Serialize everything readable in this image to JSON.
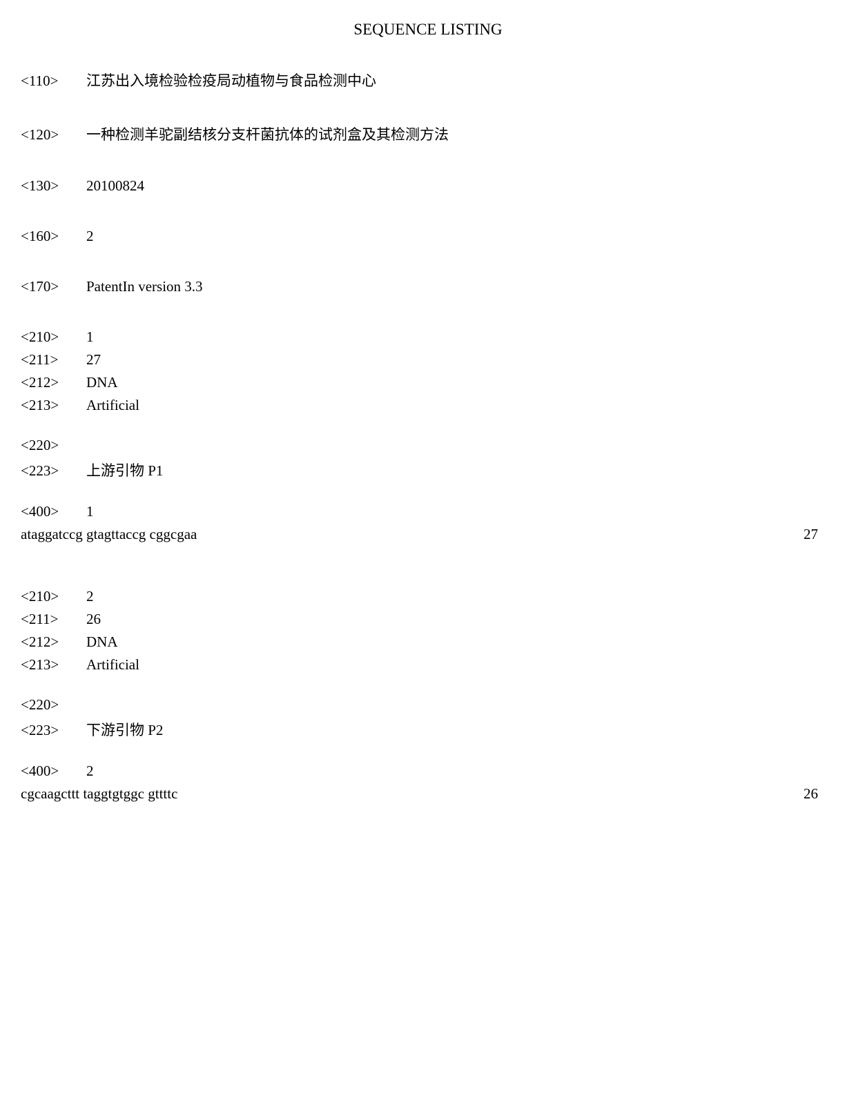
{
  "title": "SEQUENCE LISTING",
  "header": {
    "tag110": "<110>",
    "val110": "江苏出入境检验检疫局动植物与食品检测中心",
    "tag120": "<120>",
    "val120": "一种检测羊驼副结核分支杆菌抗体的试剂盒及其检测方法",
    "tag130": "<130>",
    "val130": "20100824",
    "tag160": "<160>",
    "val160": "2",
    "tag170": "<170>",
    "val170": "PatentIn version 3.3"
  },
  "seq1": {
    "tag210": "<210>",
    "val210": "1",
    "tag211": "<211>",
    "val211": "27",
    "tag212": "<212>",
    "val212": "DNA",
    "tag213": "<213>",
    "val213": "Artificial",
    "tag220": "<220>",
    "tag223": "<223>",
    "val223": "上游引物 P1",
    "tag400": "<400>",
    "val400": "1",
    "sequence": "ataggatccg gtagttaccg cggcgaa",
    "length": "27"
  },
  "seq2": {
    "tag210": "<210>",
    "val210": "2",
    "tag211": "<211>",
    "val211": "26",
    "tag212": "<212>",
    "val212": "DNA",
    "tag213": "<213>",
    "val213": "Artificial",
    "tag220": "<220>",
    "tag223": "<223>",
    "val223": "下游引物 P2",
    "tag400": "<400>",
    "val400": "2",
    "sequence": "cgcaagcttt taggtgtggc gttttc",
    "length": "26"
  }
}
